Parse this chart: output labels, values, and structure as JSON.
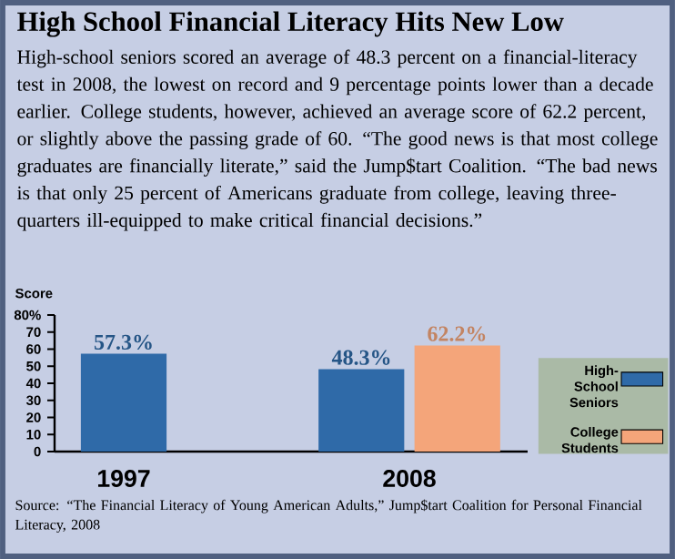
{
  "chart_data": {
    "type": "bar",
    "title": "High School Financial Literacy Hits New Low",
    "subtitle": "High-school seniors scored an average of 48.3 percent on a financial-literacy test in 2008, the lowest on record and 9 percentage points lower than a decade earlier. College students, however, achieved an average score of 62.2 percent, or slightly above the passing grade of 60. “The good news is that most college graduates are financially literate,” said the Jump$tart Coalition. “The bad news is that only 25 percent of Americans graduate from college, leaving three-quarters ill-equipped to make critical financial decisions.”",
    "ylabel": "Score",
    "categories": [
      "1997",
      "2008"
    ],
    "series": [
      {
        "name": "High-School Seniors",
        "color": "#2f6aa8",
        "values": [
          57.3,
          48.3
        ],
        "value_labels": [
          "57.3%",
          "48.3%"
        ]
      },
      {
        "name": "College Students",
        "color": "#f4a57a",
        "values": [
          null,
          62.2
        ],
        "value_labels": [
          null,
          "62.2%"
        ]
      }
    ],
    "ylim": [
      0,
      80
    ],
    "yticks": [
      0,
      10,
      20,
      30,
      40,
      50,
      60,
      70,
      {
        "value": 80,
        "label": "80%"
      }
    ],
    "legend": "right",
    "annotations": [
      "Source: “The Financial Literacy of Young American Adults,” Jump$tart Coalition for Personal Financial Literacy, 2008"
    ]
  }
}
